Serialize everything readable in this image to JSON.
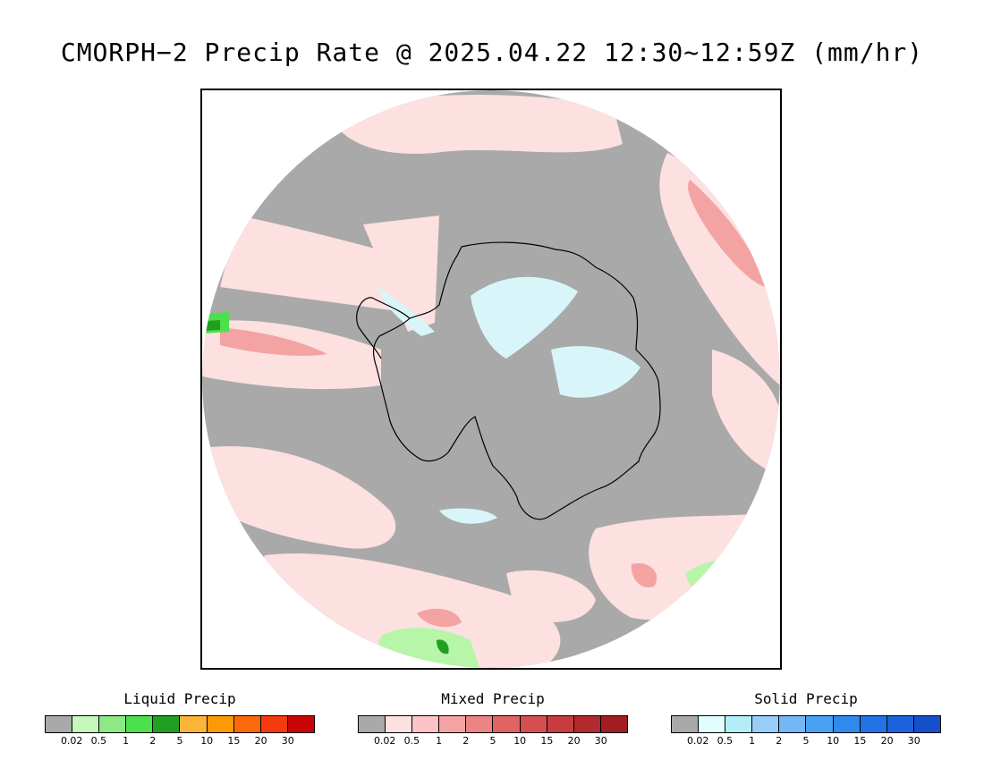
{
  "title": "CMORPH−2 Precip Rate @ 2025.04.22 12:30~12:59Z (mm/hr)",
  "colors": {
    "no_precip": "#a9a9a9",
    "mixed_light": "#fde0e0",
    "mixed_mod": "#f4a3a3",
    "mixed_heavy": "#d9575a",
    "solid_light": "#d8f6fa",
    "liquid_light": "#b7f5a9",
    "liquid_mod": "#4ce04c",
    "liquid_heavy": "#20a020",
    "coast": "#000000"
  },
  "legends": [
    {
      "id": "liquid",
      "title": "Liquid Precip",
      "swatches": [
        "#a9a9a9",
        "#c6f7bd",
        "#8ee886",
        "#4ce04c",
        "#20a020",
        "#fbb33a",
        "#fb9a06",
        "#fb6a0a",
        "#f63a0e",
        "#c80606"
      ],
      "ticks": [
        "0.02",
        "0.5",
        "1",
        "2",
        "5",
        "10",
        "15",
        "20",
        "30"
      ]
    },
    {
      "id": "mixed",
      "title": "Mixed Precip",
      "swatches": [
        "#a9a9a9",
        "#fde0e0",
        "#fbc3c6",
        "#f4a3a3",
        "#ec8484",
        "#e06464",
        "#d44e52",
        "#c63c40",
        "#b32a2e",
        "#a01e22"
      ],
      "ticks": [
        "0.02",
        "0.5",
        "1",
        "2",
        "5",
        "10",
        "15",
        "20",
        "30"
      ]
    },
    {
      "id": "solid",
      "title": "Solid Precip",
      "swatches": [
        "#a9a9a9",
        "#e1fdfd",
        "#b3eef8",
        "#97cdf8",
        "#74b6f6",
        "#4aa0f2",
        "#2f8aec",
        "#2274e6",
        "#1c62dc",
        "#1650c8"
      ],
      "ticks": [
        "0.02",
        "0.5",
        "1",
        "2",
        "5",
        "10",
        "15",
        "20",
        "30"
      ]
    }
  ]
}
